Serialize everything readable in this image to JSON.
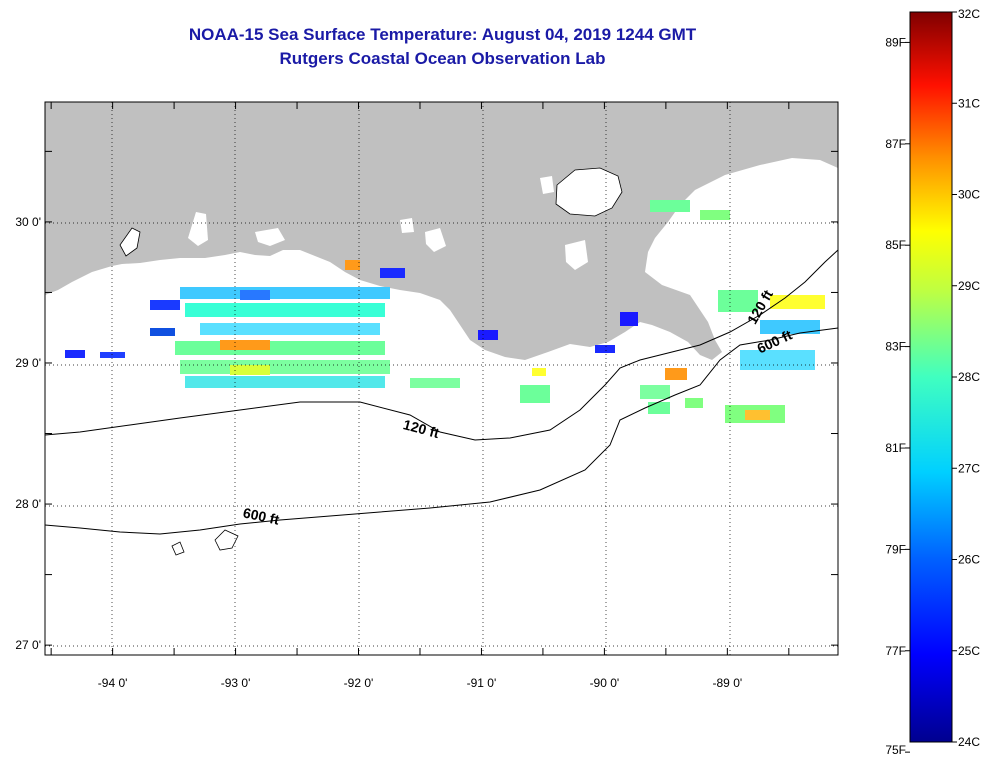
{
  "title": {
    "line1": "NOAA-15 Sea Surface Temperature:  August 04, 2019 1244 GMT",
    "line2": "Rutgers Coastal Ocean Observation Lab"
  },
  "map": {
    "lon_range": [
      -94.55,
      -88.1
    ],
    "lat_range": [
      26.93,
      30.85
    ],
    "lon_ticks": [
      {
        "value": -94,
        "label": "-94 0'"
      },
      {
        "value": -93,
        "label": "-93 0'"
      },
      {
        "value": -92,
        "label": "-92 0'"
      },
      {
        "value": -91,
        "label": "-91 0'"
      },
      {
        "value": -90,
        "label": "-90 0'"
      },
      {
        "value": -89,
        "label": "-89 0'"
      }
    ],
    "lat_ticks": [
      {
        "value": 30,
        "label": "30 0'"
      },
      {
        "value": 29,
        "label": "29 0'"
      },
      {
        "value": 28,
        "label": "28 0'"
      },
      {
        "value": 27,
        "label": "27 0'"
      }
    ],
    "contour_labels": [
      {
        "text": "120 ft",
        "lon": -91.5,
        "lat": 28.5,
        "rotation": 15
      },
      {
        "text": "600 ft",
        "lon": -92.8,
        "lat": 27.88,
        "rotation": 12
      },
      {
        "text": "120 ft",
        "lon": -88.7,
        "lat": 29.38,
        "rotation": -60
      },
      {
        "text": "600 ft",
        "lon": -88.6,
        "lat": 29.12,
        "rotation": -25
      }
    ],
    "land_color": "#c0c0c0",
    "grid": "dotted"
  },
  "colorbar": {
    "celsius_labels": [
      "32C",
      "31C",
      "30C",
      "29C",
      "28C",
      "27C",
      "26C",
      "25C",
      "24C"
    ],
    "fahrenheit_labels": [
      "89F",
      "87F",
      "85F",
      "83F",
      "81F",
      "79F",
      "77F",
      "75F"
    ],
    "celsius_range": [
      24,
      32
    ],
    "colors": [
      "#00008f",
      "#0000ff",
      "#0080ff",
      "#00ffff",
      "#80ff80",
      "#ffff00",
      "#ff8000",
      "#ff0000",
      "#800000"
    ]
  }
}
